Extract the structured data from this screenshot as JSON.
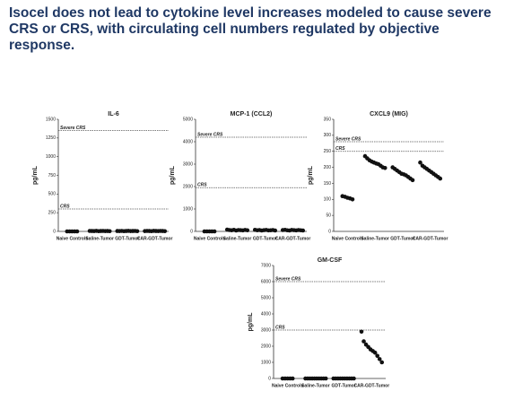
{
  "title": "Isocel does not lead to cytokine level increases modeled to cause severe CRS or CRS, with circulating cell numbers regulated by objective response.",
  "chart_data": [
    {
      "type": "dot",
      "title": "IL-6",
      "ylabel": "pg/mL",
      "categories": [
        "Naive Controls",
        "Saline-Tumor",
        "GDT-Tumor",
        "CAR-GDT-Tumor"
      ],
      "values": [
        [
          0,
          0,
          0,
          0,
          0
        ],
        [
          6,
          5,
          4,
          7,
          3,
          5,
          6,
          4,
          5,
          3
        ],
        [
          5,
          4,
          6,
          3,
          5,
          7,
          4,
          5,
          6,
          3
        ],
        [
          4,
          6,
          5,
          3,
          7,
          5,
          4,
          6,
          5,
          3
        ]
      ],
      "ylim": [
        0,
        1500
      ],
      "yticks": [
        0,
        250,
        500,
        750,
        1000,
        1250,
        1500
      ],
      "thresholds": [
        {
          "label": "Severe CRS",
          "value": 1350
        },
        {
          "label": "CRS",
          "value": 300
        }
      ]
    },
    {
      "type": "dot",
      "title": "MCP-1 (CCL2)",
      "ylabel": "pg/mL",
      "categories": [
        "Naive Controls",
        "Saline-Tumor",
        "GDT-Tumor",
        "CAR-GDT-Tumor"
      ],
      "values": [
        [
          0,
          0,
          0,
          0,
          0
        ],
        [
          80,
          60,
          50,
          70,
          40,
          60,
          55,
          45,
          65,
          50
        ],
        [
          70,
          50,
          60,
          40,
          55,
          65,
          45,
          50,
          60,
          40
        ],
        [
          60,
          70,
          50,
          40,
          65,
          55,
          45,
          60,
          50,
          40
        ]
      ],
      "ylim": [
        0,
        5000
      ],
      "yticks": [
        0,
        1000,
        2000,
        3000,
        4000,
        5000
      ],
      "thresholds": [
        {
          "label": "Severe CRS",
          "value": 4200
        },
        {
          "label": "CRS",
          "value": 1950
        }
      ]
    },
    {
      "type": "dot",
      "title": "CXCL9 (MIG)",
      "ylabel": "pg/mL",
      "categories": [
        "Naive Controls",
        "Saline-Tumor",
        "GDT-Tumor",
        "CAR-GDT-Tumor"
      ],
      "values": [
        [
          110,
          108,
          105,
          103,
          100
        ],
        [
          235,
          228,
          222,
          218,
          215,
          212,
          210,
          205,
          200,
          198
        ],
        [
          200,
          195,
          190,
          185,
          180,
          178,
          175,
          170,
          165,
          160
        ],
        [
          215,
          205,
          200,
          195,
          190,
          185,
          180,
          175,
          170,
          165
        ]
      ],
      "ylim": [
        0,
        350
      ],
      "yticks": [
        0,
        50,
        100,
        150,
        200,
        250,
        300,
        350
      ],
      "thresholds": [
        {
          "label": "Severe CRS",
          "value": 280
        },
        {
          "label": "CRS",
          "value": 250
        }
      ]
    },
    {
      "type": "dot",
      "title": "GM-CSF",
      "ylabel": "pg/mL",
      "categories": [
        "Naive Controls",
        "Saline-Tumor",
        "GDT-Tumor",
        "CAR-GDT-Tumor"
      ],
      "values": [
        [
          0,
          0,
          0,
          0,
          0
        ],
        [
          0,
          0,
          0,
          0,
          0,
          0,
          0,
          0,
          0,
          0
        ],
        [
          0,
          0,
          0,
          0,
          0,
          0,
          0,
          0,
          0,
          0
        ],
        [
          2900,
          2300,
          2100,
          1950,
          1800,
          1700,
          1600,
          1400,
          1200,
          1000
        ]
      ],
      "ylim": [
        0,
        7000
      ],
      "yticks": [
        0,
        1000,
        2000,
        3000,
        4000,
        5000,
        6000,
        7000
      ],
      "thresholds": [
        {
          "label": "Severe CRS",
          "value": 6000
        },
        {
          "label": "CRS",
          "value": 3000
        }
      ]
    }
  ]
}
